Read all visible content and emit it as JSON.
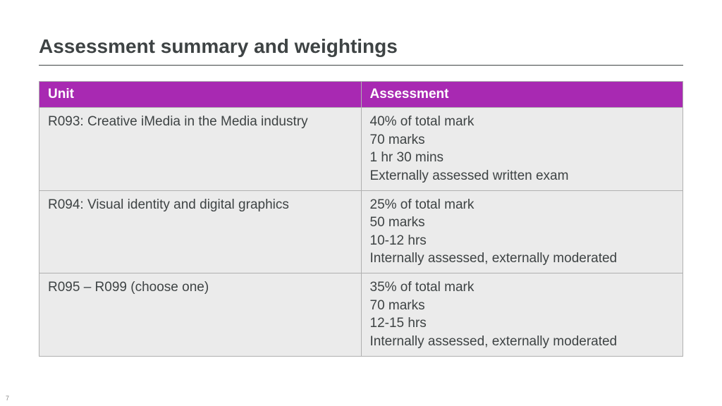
{
  "page": {
    "title": "Assessment summary and weightings",
    "pageNumber": "7"
  },
  "colors": {
    "header_bg": "#a829b2",
    "header_text": "#ffffff",
    "cell_bg": "#ebebeb",
    "cell_text": "#3e4344",
    "border": "#b0b0b0",
    "title_text": "#3e4344"
  },
  "table": {
    "type": "table",
    "columns": [
      "Unit",
      "Assessment"
    ],
    "column_widths_pct": [
      50,
      50
    ],
    "header_fontsize": 19,
    "cell_fontsize": 19,
    "rows": [
      {
        "unit": "R093: Creative iMedia in the Media industry",
        "assessment": [
          "40% of total mark",
          "70 marks",
          "1 hr 30 mins",
          "Externally assessed written exam"
        ]
      },
      {
        "unit": "R094: Visual identity and digital graphics",
        "assessment": [
          "25% of total mark",
          "50 marks",
          "10-12 hrs",
          "Internally assessed, externally moderated"
        ]
      },
      {
        "unit": "R095 – R099 (choose one)",
        "assessment": [
          "35% of total mark",
          "70 marks",
          "12-15 hrs",
          "Internally assessed, externally moderated"
        ]
      }
    ]
  }
}
